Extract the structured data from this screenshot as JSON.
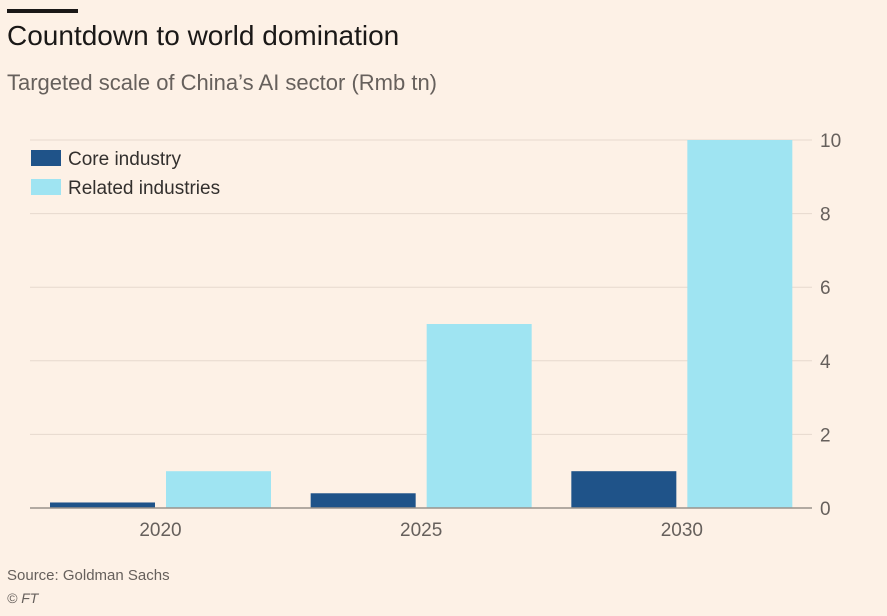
{
  "header": {
    "title": "Countdown to world domination",
    "subtitle": "Targeted scale of China’s AI sector (Rmb tn)"
  },
  "footer": {
    "source": "Source: Goldman Sachs",
    "copyright": "© FT"
  },
  "colors": {
    "core": "#1f5389",
    "related": "#9fe4f2",
    "grid": "#e6d9ce",
    "axis": "#66605c",
    "baseline": "#9a928b"
  },
  "chart_data": {
    "type": "bar",
    "categories": [
      "2020",
      "2025",
      "2030"
    ],
    "series": [
      {
        "name": "Core industry",
        "values": [
          0.15,
          0.4,
          1.0
        ]
      },
      {
        "name": "Related industries",
        "values": [
          1.0,
          5.0,
          10.0
        ]
      }
    ],
    "title": "Countdown to world domination",
    "subtitle": "Targeted scale of China’s AI sector (Rmb tn)",
    "xlabel": "",
    "ylabel": "",
    "ylim": [
      0,
      10
    ],
    "yticks": [
      0,
      2,
      4,
      6,
      8,
      10
    ],
    "y_axis_side": "right",
    "grid": true,
    "legend_position": "top-left"
  }
}
